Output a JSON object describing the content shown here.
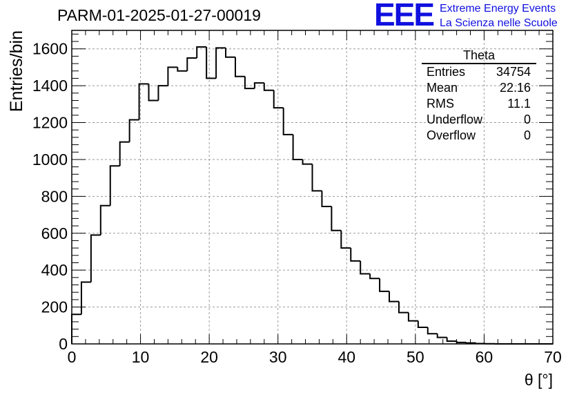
{
  "header": {
    "title": "PARM-01-2025-01-27-00019"
  },
  "logo": {
    "mark": "EEE",
    "line1": "Extreme Energy Events",
    "line2": "La Scienza nelle Scuole"
  },
  "stats_box": {
    "title": "Theta",
    "rows": [
      {
        "label": "Entries",
        "value": "34754"
      },
      {
        "label": "Mean",
        "value": "22.16"
      },
      {
        "label": "RMS",
        "value": "11.1"
      },
      {
        "label": "Underflow",
        "value": "0"
      },
      {
        "label": "Overflow",
        "value": "0"
      }
    ]
  },
  "chart_data": {
    "type": "histogram",
    "title": "PARM-01-2025-01-27-00019",
    "xlabel": "θ [°]",
    "ylabel": "Entries/bin",
    "xlim": [
      0,
      70
    ],
    "ylim": [
      0,
      1700
    ],
    "grid": true,
    "bin_width": 1.4,
    "bin_edges_start": 0,
    "x_ticks": [
      0,
      10,
      20,
      30,
      40,
      50,
      60,
      70
    ],
    "y_ticks": [
      0,
      200,
      400,
      600,
      800,
      1000,
      1200,
      1400,
      1600
    ],
    "values": [
      160,
      335,
      590,
      750,
      965,
      1095,
      1215,
      1410,
      1320,
      1400,
      1500,
      1480,
      1550,
      1610,
      1440,
      1605,
      1555,
      1450,
      1385,
      1415,
      1375,
      1280,
      1135,
      1000,
      975,
      830,
      745,
      615,
      520,
      450,
      380,
      355,
      285,
      230,
      170,
      125,
      90,
      55,
      35,
      15,
      8,
      5,
      2,
      1,
      0,
      0,
      0,
      0,
      0,
      0
    ]
  }
}
